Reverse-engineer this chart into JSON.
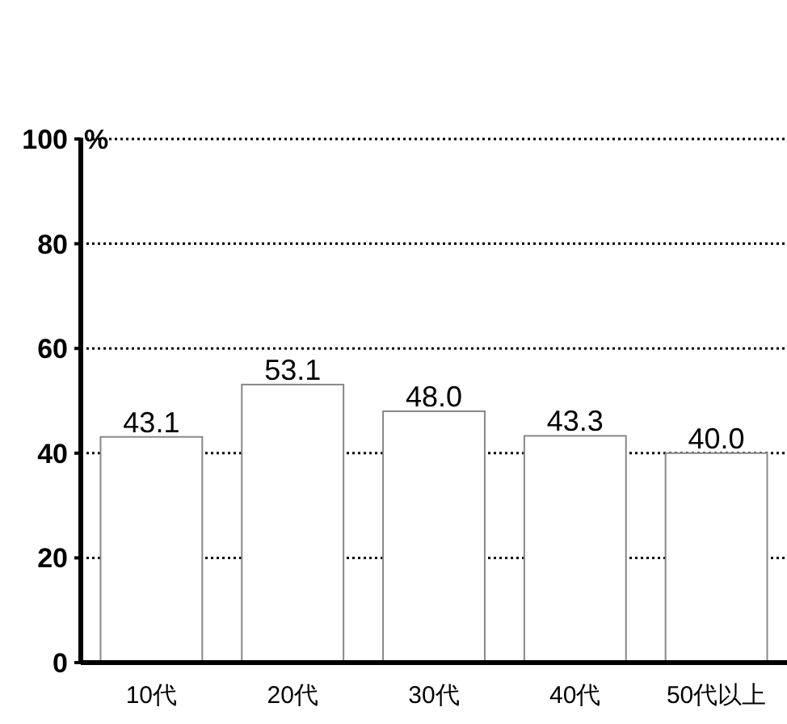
{
  "chart_data": {
    "type": "bar",
    "ylabel": "%",
    "categories": [
      "10代",
      "20代",
      "30代",
      "40代",
      "50代以上"
    ],
    "values": [
      43.1,
      53.1,
      48.0,
      43.3,
      40.0
    ],
    "color": "#ffffff",
    "ylim": [
      0,
      100
    ],
    "yticks": [
      0,
      20,
      40,
      60,
      80,
      100
    ],
    "grid": "y",
    "value_labels": [
      "43.1",
      "53.1",
      "48.0",
      "43.3",
      "40.0"
    ]
  }
}
